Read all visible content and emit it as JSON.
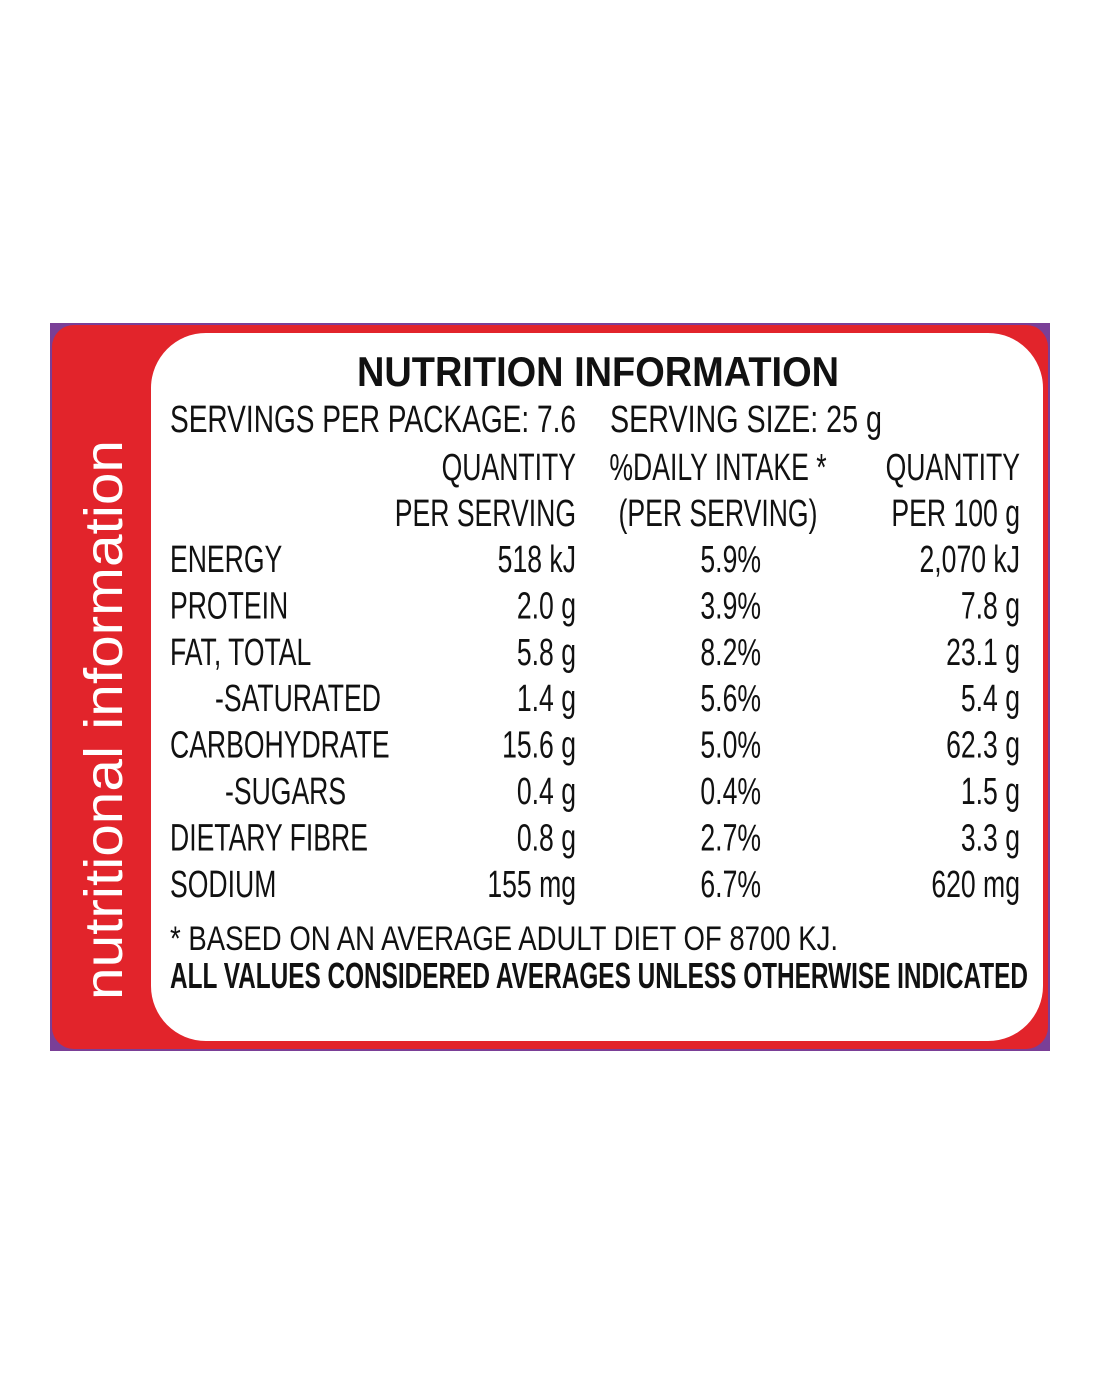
{
  "side_label": "nutritional information",
  "title": "NUTRITION INFORMATION",
  "servings": "SERVINGS PER PACKAGE: 7.6",
  "serving_size": "SERVING SIZE: 25 g",
  "table": {
    "header": [
      [
        "QUANTITY",
        "PER SERVING"
      ],
      [
        "%DAILY INTAKE *",
        "(PER SERVING)"
      ],
      [
        "QUANTITY",
        "PER 100 g"
      ]
    ],
    "rows": [
      [
        "ENERGY",
        "518 kJ",
        "5.9%",
        "2,070 kJ"
      ],
      [
        "PROTEIN",
        "2.0 g",
        "3.9%",
        "7.8 g"
      ],
      [
        "FAT, TOTAL",
        "5.8 g",
        "8.2%",
        "23.1 g"
      ],
      [
        "-SATURATED",
        "1.4 g",
        "5.6%",
        "5.4 g"
      ],
      [
        "CARBOHYDRATE",
        "15.6 g",
        "5.0%",
        "62.3 g"
      ],
      [
        "-SUGARS",
        "0.4 g",
        "0.4%",
        "1.5 g"
      ],
      [
        "DIETARY FIBRE",
        "0.8 g",
        "2.7%",
        "3.3 g"
      ],
      [
        "SODIUM",
        "155 mg",
        "6.7%",
        "620 mg"
      ]
    ]
  },
  "footnote": "* BASED ON AN AVERAGE ADULT DIET OF 8700 KJ.",
  "note": "ALL VALUES CONSIDERED AVERAGES UNLESS OTHERWISE INDICATED"
}
